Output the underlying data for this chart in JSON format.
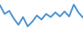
{
  "x": [
    0,
    1,
    2,
    3,
    4,
    5,
    6,
    7,
    8,
    9,
    10,
    11,
    12,
    13,
    14,
    15,
    16,
    17,
    18
  ],
  "y": [
    0.88,
    0.6,
    0.7,
    0.45,
    0.25,
    0.5,
    0.2,
    0.35,
    0.55,
    0.42,
    0.6,
    0.5,
    0.65,
    0.52,
    0.68,
    0.52,
    0.9,
    0.65,
    0.48
  ],
  "line_color": "#4d96d4",
  "linewidth": 1.8,
  "background_color": "#ffffff",
  "ylim": [
    0.05,
    1.05
  ],
  "xlim": [
    0,
    18
  ]
}
